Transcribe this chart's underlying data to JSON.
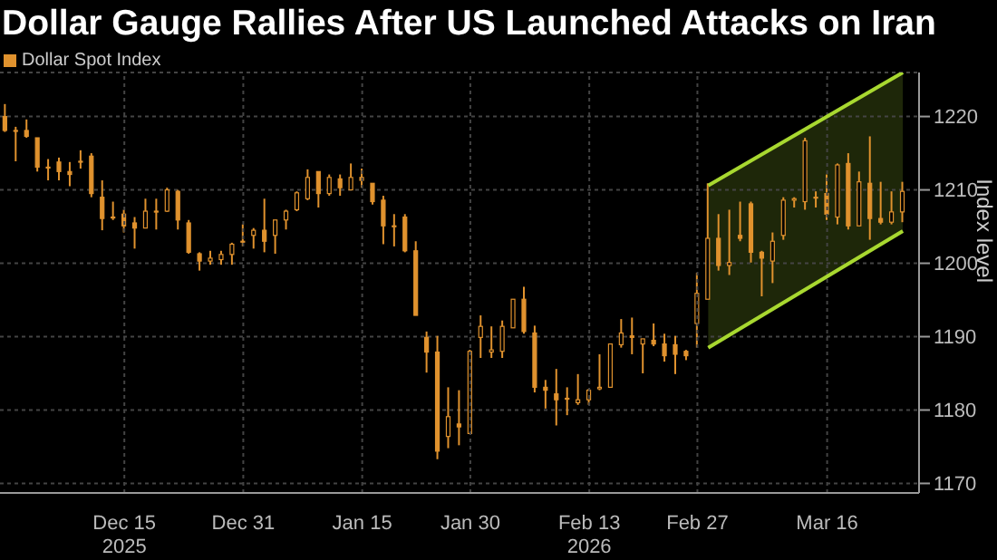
{
  "chart_data": {
    "type": "candlestick",
    "title": "Dollar Gauge Rallies After US Launched Attacks on Iran",
    "ylabel": "Index level",
    "categories": [
      null,
      null,
      null,
      null,
      null,
      null,
      null,
      null,
      null,
      null,
      null,
      "Dec 15\n2025",
      null,
      null,
      null,
      null,
      null,
      null,
      null,
      null,
      null,
      null,
      "Dec 31",
      null,
      null,
      null,
      null,
      null,
      null,
      null,
      null,
      null,
      null,
      "Jan 15",
      null,
      null,
      null,
      null,
      null,
      null,
      null,
      null,
      null,
      "Jan 30",
      null,
      null,
      null,
      null,
      null,
      null,
      null,
      null,
      null,
      null,
      "Feb 13\n2026",
      null,
      null,
      null,
      null,
      null,
      null,
      null,
      null,
      null,
      "Feb 27",
      null,
      null,
      null,
      null,
      null,
      null,
      null,
      null,
      null,
      null,
      null,
      "Mar 16",
      null,
      null,
      null,
      null,
      null,
      null,
      null,
      null
    ],
    "series": [
      {
        "name": "Dollar Spot Index",
        "color": "#e0922e",
        "ohlc": [
          [
            1220.0,
            1221.7,
            1217.9,
            1218.1
          ],
          [
            1218.1,
            1218.6,
            1213.9,
            1218.1
          ],
          [
            1218.1,
            1219.6,
            1217.1,
            1217.3
          ],
          [
            1217.1,
            1217.1,
            1212.5,
            1213.1
          ],
          [
            1213.1,
            1214.2,
            1211.3,
            1213.1
          ],
          [
            1213.8,
            1214.4,
            1211.3,
            1212.5
          ],
          [
            1212.5,
            1213.8,
            1210.5,
            1212.1
          ],
          [
            1213.9,
            1215.4,
            1212.9,
            1213.9
          ],
          [
            1214.6,
            1215.0,
            1209.0,
            1209.5
          ],
          [
            1209.0,
            1211.3,
            1204.5,
            1206.1
          ],
          [
            1206.3,
            1208.4,
            1205.9,
            1206.3
          ],
          [
            1206.7,
            1207.3,
            1204.2,
            1205.1
          ],
          [
            1205.5,
            1206.3,
            1202.0,
            1204.8
          ],
          [
            1204.8,
            1208.8,
            1204.8,
            1207.1
          ],
          [
            1207.1,
            1208.8,
            1204.6,
            1207.1
          ],
          [
            1207.1,
            1210.3,
            1207.0,
            1210.0
          ],
          [
            1209.8,
            1210.0,
            1204.6,
            1205.9
          ],
          [
            1205.5,
            1205.9,
            1201.3,
            1201.5
          ],
          [
            1201.3,
            1201.5,
            1199.0,
            1200.3
          ],
          [
            1200.3,
            1201.7,
            1199.8,
            1200.7
          ],
          [
            1200.5,
            1201.7,
            1199.8,
            1201.2
          ],
          [
            1201.2,
            1202.8,
            1199.8,
            1202.6
          ],
          [
            1203.0,
            1205.3,
            1202.3,
            1203.0
          ],
          [
            1203.8,
            1204.8,
            1202.0,
            1204.5
          ],
          [
            1204.5,
            1208.8,
            1201.5,
            1203.0
          ],
          [
            1203.8,
            1205.9,
            1201.3,
            1205.9
          ],
          [
            1205.9,
            1207.3,
            1204.6,
            1207.1
          ],
          [
            1207.3,
            1209.8,
            1207.1,
            1209.6
          ],
          [
            1208.8,
            1212.8,
            1208.6,
            1211.7
          ],
          [
            1212.5,
            1212.5,
            1207.6,
            1209.5
          ],
          [
            1209.5,
            1212.1,
            1209.2,
            1211.7
          ],
          [
            1211.5,
            1212.1,
            1209.2,
            1210.3
          ],
          [
            1210.0,
            1213.6,
            1210.0,
            1211.7
          ],
          [
            1211.7,
            1212.9,
            1210.3,
            1211.3
          ],
          [
            1210.9,
            1210.9,
            1208.0,
            1208.4
          ],
          [
            1208.6,
            1209.2,
            1202.6,
            1205.1
          ],
          [
            1205.1,
            1206.7,
            1202.3,
            1205.1
          ],
          [
            1206.3,
            1206.7,
            1201.5,
            1201.7
          ],
          [
            1201.7,
            1203.0,
            1192.9,
            1192.9
          ],
          [
            1189.9,
            1190.7,
            1185.1,
            1187.9
          ],
          [
            1187.9,
            1190.1,
            1173.3,
            1174.4
          ],
          [
            1176.4,
            1183.1,
            1174.8,
            1179.1
          ],
          [
            1178.1,
            1182.7,
            1175.2,
            1177.7
          ],
          [
            1176.8,
            1188.2,
            1176.8,
            1188.0
          ],
          [
            1189.9,
            1192.9,
            1187.1,
            1191.4
          ],
          [
            1187.9,
            1191.4,
            1187.1,
            1188.2
          ],
          [
            1188.0,
            1192.2,
            1187.1,
            1191.4
          ],
          [
            1191.2,
            1195.1,
            1191.2,
            1195.1
          ],
          [
            1195.1,
            1196.8,
            1190.4,
            1190.7
          ],
          [
            1190.5,
            1191.5,
            1182.4,
            1183.1
          ],
          [
            1183.1,
            1184.1,
            1180.2,
            1182.7
          ],
          [
            1182.2,
            1185.6,
            1177.9,
            1181.4
          ],
          [
            1181.6,
            1183.1,
            1179.3,
            1181.6
          ],
          [
            1181.0,
            1184.9,
            1180.7,
            1181.4
          ],
          [
            1181.4,
            1182.9,
            1180.7,
            1182.7
          ],
          [
            1182.9,
            1187.6,
            1182.7,
            1183.1
          ],
          [
            1183.1,
            1189.0,
            1183.1,
            1189.0
          ],
          [
            1188.9,
            1192.4,
            1188.5,
            1190.5
          ],
          [
            1190.1,
            1192.6,
            1187.6,
            1189.9
          ],
          [
            1189.0,
            1189.7,
            1185.0,
            1189.7
          ],
          [
            1189.5,
            1191.8,
            1188.7,
            1189.0
          ],
          [
            1189.0,
            1190.4,
            1186.6,
            1187.4
          ],
          [
            1188.9,
            1190.1,
            1184.9,
            1187.6
          ],
          [
            1188.0,
            1188.2,
            1186.8,
            1187.4
          ],
          [
            1191.8,
            1198.7,
            1188.5,
            1195.9
          ],
          [
            1195.1,
            1210.9,
            1195.1,
            1203.4
          ],
          [
            1203.4,
            1206.7,
            1199.0,
            1199.7
          ],
          [
            1199.7,
            1207.3,
            1198.4,
            1200.1
          ],
          [
            1203.8,
            1208.4,
            1203.0,
            1203.4
          ],
          [
            1208.1,
            1208.4,
            1200.1,
            1201.5
          ],
          [
            1201.5,
            1201.7,
            1195.5,
            1200.7
          ],
          [
            1200.3,
            1204.2,
            1197.3,
            1203.0
          ],
          [
            1203.8,
            1209.0,
            1203.2,
            1208.6
          ],
          [
            1208.6,
            1209.0,
            1207.6,
            1208.8
          ],
          [
            1208.4,
            1217.1,
            1207.3,
            1216.7
          ],
          [
            1209.0,
            1209.8,
            1207.6,
            1209.0
          ],
          [
            1209.5,
            1212.1,
            1205.9,
            1206.7
          ],
          [
            1206.3,
            1213.6,
            1205.3,
            1213.4
          ],
          [
            1213.6,
            1215.0,
            1204.6,
            1205.1
          ],
          [
            1205.1,
            1212.5,
            1205.1,
            1211.1
          ],
          [
            1210.9,
            1217.3,
            1203.2,
            1206.1
          ],
          [
            1206.1,
            1211.1,
            1205.3,
            1205.6
          ],
          [
            1205.6,
            1209.8,
            1205.3,
            1207.0
          ],
          [
            1207.0,
            1211.1,
            1205.6,
            1209.8
          ],
          null
        ]
      },
      {
        "type": "line",
        "color": "#a8d830",
        "values": [
          null,
          null,
          null,
          null,
          null,
          null,
          null,
          null,
          null,
          null,
          null,
          null,
          null,
          null,
          null,
          null,
          null,
          null,
          null,
          null,
          null,
          null,
          null,
          null,
          null,
          null,
          null,
          null,
          null,
          null,
          null,
          null,
          null,
          null,
          null,
          null,
          null,
          null,
          null,
          null,
          null,
          null,
          null,
          null,
          null,
          null,
          null,
          null,
          null,
          null,
          null,
          null,
          null,
          null,
          null,
          null,
          null,
          null,
          null,
          null,
          null,
          null,
          null,
          null,
          null,
          1210.6,
          null,
          null,
          null,
          null,
          null,
          null,
          null,
          null,
          null,
          null,
          null,
          null,
          null,
          null,
          null,
          null,
          null,
          1226,
          null
        ]
      },
      {
        "type": "line",
        "color": "#a8d830",
        "values": [
          null,
          null,
          null,
          null,
          null,
          null,
          null,
          null,
          null,
          null,
          null,
          null,
          null,
          null,
          null,
          null,
          null,
          null,
          null,
          null,
          null,
          null,
          null,
          null,
          null,
          null,
          null,
          null,
          null,
          null,
          null,
          null,
          null,
          null,
          null,
          null,
          null,
          null,
          null,
          null,
          null,
          null,
          null,
          null,
          null,
          null,
          null,
          null,
          null,
          null,
          null,
          null,
          null,
          null,
          null,
          null,
          null,
          null,
          null,
          null,
          null,
          null,
          null,
          null,
          null,
          1188.5,
          null,
          null,
          null,
          null,
          null,
          null,
          null,
          null,
          null,
          null,
          null,
          null,
          null,
          null,
          null,
          null,
          null,
          1204.4,
          null
        ]
      }
    ],
    "ylim": [
      1168.7,
      1226
    ],
    "yticks": [
      1170,
      1180,
      1190,
      1200,
      1210,
      1220
    ],
    "grid": true,
    "legend": "top left"
  }
}
